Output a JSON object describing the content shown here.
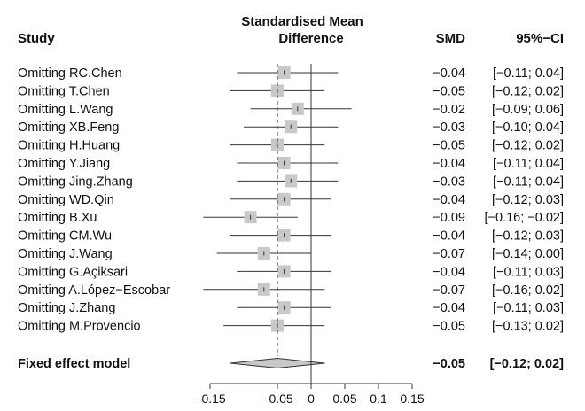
{
  "chart_data": {
    "type": "forest",
    "headers": {
      "study": "Study",
      "effect_line1": "Standardised Mean",
      "effect_line2": "Difference",
      "smd": "SMD",
      "ci": "95%−CI"
    },
    "studies": [
      {
        "label": "Omitting RC.Chen",
        "smd": -0.04,
        "lower": -0.11,
        "upper": 0.04,
        "smd_text": "−0.04",
        "ci_text": "[−0.11;  0.04]"
      },
      {
        "label": "Omitting T.Chen",
        "smd": -0.05,
        "lower": -0.12,
        "upper": 0.02,
        "smd_text": "−0.05",
        "ci_text": "[−0.12;  0.02]"
      },
      {
        "label": "Omitting L.Wang",
        "smd": -0.02,
        "lower": -0.09,
        "upper": 0.06,
        "smd_text": "−0.02",
        "ci_text": "[−0.09;  0.06]"
      },
      {
        "label": "Omitting XB.Feng",
        "smd": -0.03,
        "lower": -0.1,
        "upper": 0.04,
        "smd_text": "−0.03",
        "ci_text": "[−0.10;  0.04]"
      },
      {
        "label": "Omitting H.Huang",
        "smd": -0.05,
        "lower": -0.12,
        "upper": 0.02,
        "smd_text": "−0.05",
        "ci_text": "[−0.12;  0.02]"
      },
      {
        "label": "Omitting Y.Jiang",
        "smd": -0.04,
        "lower": -0.11,
        "upper": 0.04,
        "smd_text": "−0.04",
        "ci_text": "[−0.11;  0.04]"
      },
      {
        "label": "Omitting Jing.Zhang",
        "smd": -0.03,
        "lower": -0.11,
        "upper": 0.04,
        "smd_text": "−0.03",
        "ci_text": "[−0.11;  0.04]"
      },
      {
        "label": "Omitting WD.Qin",
        "smd": -0.04,
        "lower": -0.12,
        "upper": 0.03,
        "smd_text": "−0.04",
        "ci_text": "[−0.12;  0.03]"
      },
      {
        "label": "Omitting B.Xu",
        "smd": -0.09,
        "lower": -0.16,
        "upper": -0.02,
        "smd_text": "−0.09",
        "ci_text": "[−0.16; −0.02]"
      },
      {
        "label": "Omitting CM.Wu",
        "smd": -0.04,
        "lower": -0.12,
        "upper": 0.03,
        "smd_text": "−0.04",
        "ci_text": "[−0.12;  0.03]"
      },
      {
        "label": "Omitting J.Wang",
        "smd": -0.07,
        "lower": -0.14,
        "upper": 0.0,
        "smd_text": "−0.07",
        "ci_text": "[−0.14;  0.00]"
      },
      {
        "label": "Omitting G.Açiksari",
        "smd": -0.04,
        "lower": -0.11,
        "upper": 0.03,
        "smd_text": "−0.04",
        "ci_text": "[−0.11;  0.03]"
      },
      {
        "label": "Omitting A.López−Escobar",
        "smd": -0.07,
        "lower": -0.16,
        "upper": 0.02,
        "smd_text": "−0.07",
        "ci_text": "[−0.16;  0.02]"
      },
      {
        "label": "Omitting J.Zhang",
        "smd": -0.04,
        "lower": -0.11,
        "upper": 0.03,
        "smd_text": "−0.04",
        "ci_text": "[−0.11;  0.03]"
      },
      {
        "label": "Omitting M.Provencio",
        "smd": -0.05,
        "lower": -0.13,
        "upper": 0.02,
        "smd_text": "−0.05",
        "ci_text": "[−0.13;  0.02]"
      }
    ],
    "pooled": {
      "label": "Fixed effect model",
      "smd": -0.05,
      "lower": -0.12,
      "upper": 0.02,
      "smd_text": "−0.05",
      "ci_text": "[−0.12;  0.02]"
    },
    "x_ticks": [
      -0.15,
      -0.05,
      0,
      0.05,
      0.1,
      0.15
    ],
    "x_tick_labels": [
      "−0.15",
      "−0.05",
      "0",
      "0.05",
      "0.1",
      "0.15"
    ],
    "xlim": [
      -0.15,
      0.15
    ],
    "null_value": 0,
    "colors": {
      "marker": "#c8c8c8",
      "line": "#333333",
      "diamond_fill": "#c8c8c8",
      "text": "#111111"
    }
  }
}
